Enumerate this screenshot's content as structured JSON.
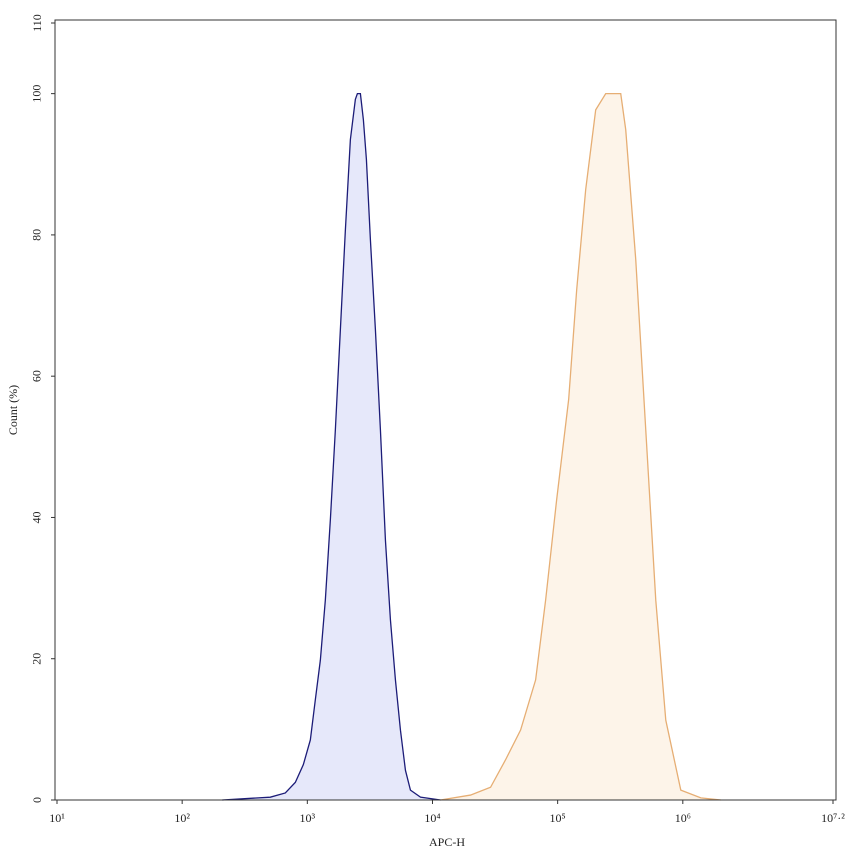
{
  "chart_data": {
    "type": "area",
    "xscale": "log",
    "grid": false,
    "xlabel": "APC-H",
    "ylabel": "Count (%)",
    "xlim": [
      10,
      15848932
    ],
    "ylim": [
      0,
      110
    ],
    "xticks": [
      {
        "value": 10,
        "label": "10¹"
      },
      {
        "value": 100,
        "label": "10²"
      },
      {
        "value": 1000,
        "label": "10³"
      },
      {
        "value": 10000,
        "label": "10⁴"
      },
      {
        "value": 100000,
        "label": "10⁵"
      },
      {
        "value": 1000000,
        "label": "10⁶"
      },
      {
        "value": 15848932,
        "label": "10⁷·²"
      }
    ],
    "yticks": [
      0,
      20,
      40,
      60,
      80,
      100,
      110
    ],
    "series": [
      {
        "color": "#1c1c78",
        "fill": "#e6e8fa",
        "x": [
          209,
          506,
          667,
          802,
          929,
          1057,
          1159,
          1271,
          1393,
          1528,
          1675,
          1837,
          2014,
          2208,
          2421,
          2512,
          2655,
          2805,
          2965,
          3192,
          3499,
          3837,
          4207,
          4613,
          5058,
          5546,
          6081,
          6668,
          8017,
          11588
        ],
        "values": [
          0,
          0.4,
          1.0,
          2.5,
          5.0,
          8.5,
          14.2,
          19.8,
          28.3,
          39.7,
          52.4,
          66.6,
          80.7,
          93.5,
          99.2,
          100,
          100,
          96.3,
          90.7,
          79.3,
          66.6,
          52.4,
          36.8,
          25.5,
          17.0,
          9.9,
          4.2,
          1.4,
          0.4,
          0
        ]
      },
      {
        "color": "#e6ae74",
        "fill": "#fdf4e9",
        "x": [
          11588,
          20137,
          29107,
          38371,
          50582,
          66681,
          80168,
          98175,
          122462,
          141906,
          167494,
          201372,
          242103,
          319154,
          349945,
          420727,
          505825,
          608135,
          731139,
          963829,
          1393157,
          2013724
        ],
        "values": [
          0,
          0.7,
          1.8,
          5.7,
          9.9,
          17.0,
          28.3,
          42.5,
          56.7,
          72.2,
          86.4,
          97.7,
          100,
          100,
          94.9,
          76.5,
          52.4,
          28.3,
          11.3,
          1.4,
          0.3,
          0
        ]
      }
    ]
  }
}
